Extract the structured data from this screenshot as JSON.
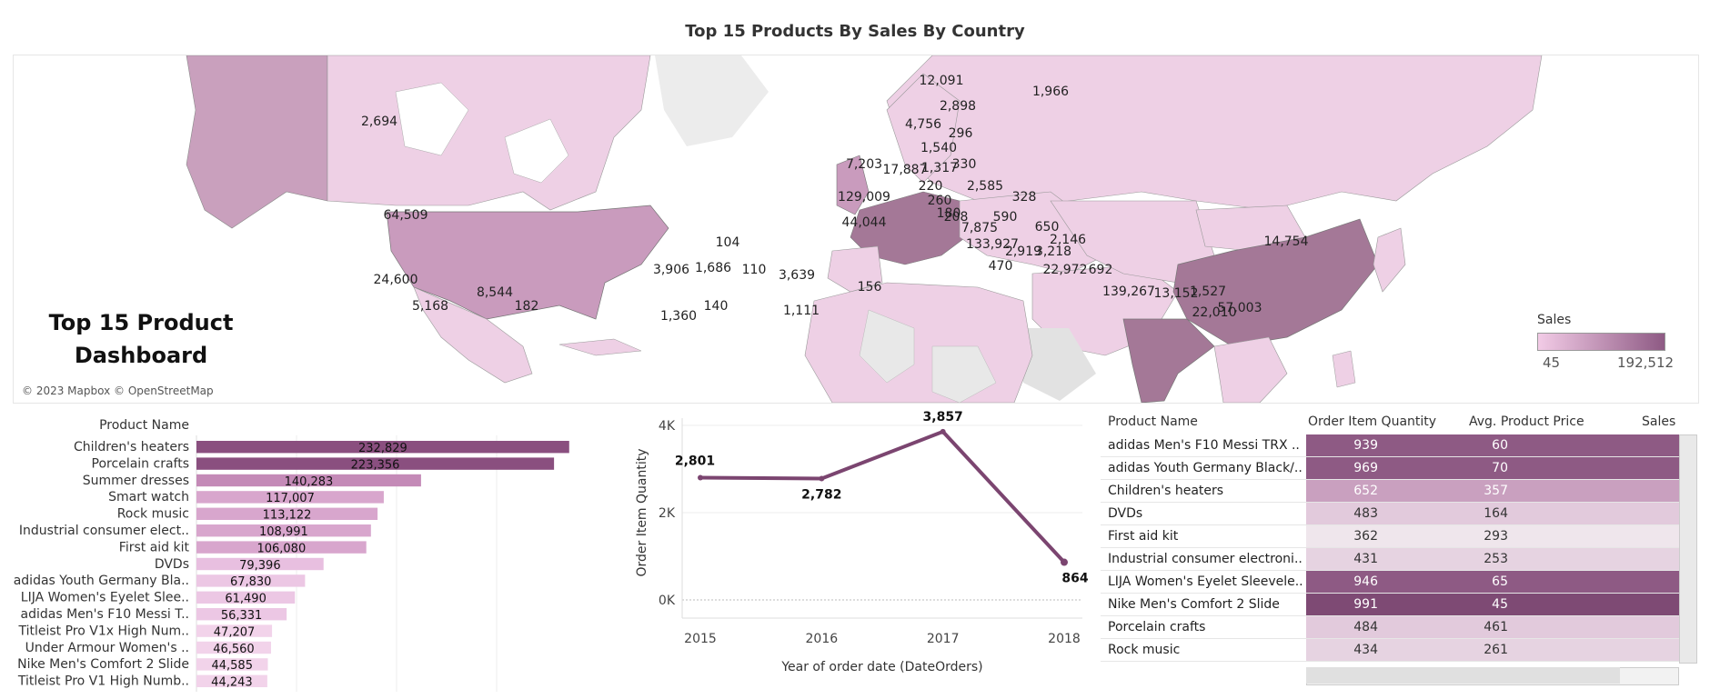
{
  "dashboard": {
    "title": "Top 15 Products By Sales  By Country",
    "side_title_line1": "Top 15 Product",
    "side_title_line2": "Dashboard",
    "attribution": "© 2023 Mapbox © OpenStreetMap",
    "map_legend": {
      "title": "Sales",
      "min": "45",
      "max": "192,512",
      "color_low": "#f2cbe6",
      "color_high": "#8e5a84"
    },
    "map_labels": [
      "1,966",
      "12,091",
      "2,898",
      "4,756",
      "296",
      "1,540",
      "7,203",
      "17,887",
      "1,317",
      "330",
      "2,585",
      "129,009",
      "260",
      "44,044",
      "180",
      "7,875",
      "590",
      "220",
      "328",
      "208",
      "650",
      "2,146",
      "133,927",
      "14,754",
      "3,218",
      "2,919",
      "470",
      "22,972",
      "692",
      "1,527",
      "139,267",
      "13,152",
      "22,010",
      "57,003",
      "3,906",
      "104",
      "1,686",
      "110",
      "3,639",
      "156",
      "1,360",
      "140",
      "1,111",
      "2,694",
      "64,509",
      "24,600",
      "5,168",
      "8,544",
      "182"
    ],
    "land_color": "#eed0e5",
    "highlight_colors": {
      "mid": "#c99bbd",
      "dark": "#a47897",
      "gray": "#e2e2e2"
    }
  },
  "chart_data": [
    {
      "type": "bar",
      "ylabel_header": "Product Name",
      "orientation": "horizontal",
      "categories": [
        "Children's heaters",
        "Porcelain crafts",
        "Summer dresses",
        "Smart watch",
        "Rock music",
        "Industrial consumer elect..",
        "First aid kit",
        "DVDs",
        "adidas Youth Germany Bla..",
        "LIJA Women's Eyelet Slee..",
        "adidas Men's F10 Messi T..",
        "Titleist Pro V1x High Num..",
        "Under Armour Women's ..",
        "Nike Men's Comfort 2 Slide",
        "Titleist Pro V1 High Numb.."
      ],
      "values": [
        232829,
        223356,
        140283,
        117007,
        113122,
        108991,
        106080,
        79396,
        67830,
        61490,
        56331,
        47207,
        46560,
        44585,
        44243
      ],
      "value_labels": [
        "232,829",
        "223,356",
        "140,283",
        "117,007",
        "113,122",
        "108,991",
        "106,080",
        "79,396",
        "67,830",
        "61,490",
        "56,331",
        "47,207",
        "46,560",
        "44,585",
        "44,243"
      ],
      "xlim": [
        0,
        250000
      ],
      "colors": [
        "#8a4f7f",
        "#8a4f7f",
        "#c48ab7",
        "#d8a6cd",
        "#d8a6cd",
        "#d8a6cd",
        "#d8a6cd",
        "#e8bfe0",
        "#ecc7e4",
        "#ecc7e4",
        "#ecc7e4",
        "#f2d3ea",
        "#f2d3ea",
        "#f2d3ea",
        "#f2d3ea"
      ]
    },
    {
      "type": "line",
      "x": [
        2015,
        2016,
        2017,
        2018
      ],
      "x_ticks": [
        "2015",
        "2016",
        "2017",
        "2018"
      ],
      "values": [
        2801,
        2782,
        3857,
        864
      ],
      "value_labels": [
        "2,801",
        "2,782",
        "3,857",
        "864"
      ],
      "xlabel": "Year of order date (DateOrders)",
      "ylabel": "Order Item Quantity",
      "ylim": [
        0,
        4000
      ],
      "y_ticks": [
        "0K",
        "2K",
        "4K"
      ],
      "color": "#7b4570"
    },
    {
      "type": "table",
      "columns": [
        "Product Name",
        "Order Item Quantity",
        "Avg. Product Price",
        "Sales"
      ],
      "rows": [
        {
          "name": "adidas Men's F10 Messi TRX ..",
          "qty": "939",
          "price": "60",
          "bg": "#8e5a84",
          "fg": "#ffffff"
        },
        {
          "name": "adidas Youth Germany Black/..",
          "qty": "969",
          "price": "70",
          "bg": "#8e5a84",
          "fg": "#ffffff"
        },
        {
          "name": "Children's heaters",
          "qty": "652",
          "price": "357",
          "bg": "#c9a0bf",
          "fg": "#ffffff"
        },
        {
          "name": "DVDs",
          "qty": "483",
          "price": "164",
          "bg": "#e2cadc",
          "fg": "#333333"
        },
        {
          "name": "First aid kit",
          "qty": "362",
          "price": "293",
          "bg": "#efe6ec",
          "fg": "#333333"
        },
        {
          "name": "Industrial consumer electroni..",
          "qty": "431",
          "price": "253",
          "bg": "#e6d3e1",
          "fg": "#333333"
        },
        {
          "name": "LIJA Women's Eyelet Sleevele..",
          "qty": "946",
          "price": "65",
          "bg": "#8e5a84",
          "fg": "#ffffff"
        },
        {
          "name": "Nike Men's Comfort 2 Slide",
          "qty": "991",
          "price": "45",
          "bg": "#7e4a74",
          "fg": "#ffffff"
        },
        {
          "name": "Porcelain crafts",
          "qty": "484",
          "price": "461",
          "bg": "#e2cadc",
          "fg": "#333333"
        },
        {
          "name": "Rock music",
          "qty": "434",
          "price": "261",
          "bg": "#e6d3e1",
          "fg": "#333333"
        }
      ]
    }
  ]
}
